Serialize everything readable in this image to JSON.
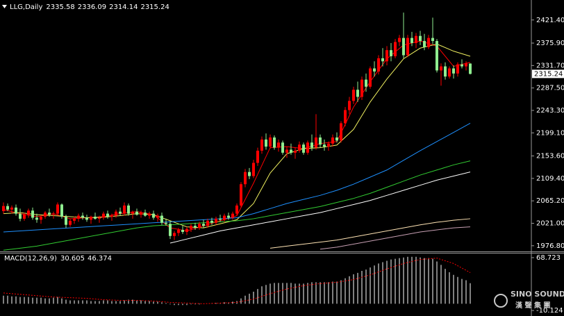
{
  "chart_data": [
    {
      "type": "candlestick",
      "title": "LLG,Daily",
      "open": [
        2045,
        2055,
        2048,
        2052,
        2040,
        2030,
        2038,
        2046,
        2032,
        2028,
        2034,
        2042,
        2038,
        2040,
        2058,
        2034,
        2018,
        2026,
        2030,
        2036,
        2032,
        2028,
        2034,
        2030,
        2032,
        2040,
        2034,
        2036,
        2044,
        2040,
        2056,
        2040,
        2044,
        2038,
        2042,
        2036,
        2040,
        2032,
        2036,
        2022,
        2020,
        1996,
        2002,
        2008,
        2004,
        2010,
        2016,
        2012,
        2020,
        2016,
        2026,
        2022,
        2030,
        2028,
        2036,
        2032,
        2040,
        2056,
        2098,
        2122,
        2114,
        2140,
        2164,
        2186,
        2172,
        2190,
        2170,
        2180,
        2160,
        2166,
        2160,
        2164,
        2176,
        2160,
        2180,
        2170,
        2190,
        2176,
        2172,
        2178,
        2190,
        2184,
        2218,
        2244,
        2262,
        2284,
        2270,
        2304,
        2290,
        2326,
        2320,
        2346,
        2340,
        2362,
        2350,
        2378,
        2386,
        2352,
        2386,
        2376,
        2390,
        2380,
        2368,
        2386,
        2380,
        2322,
        2330,
        2310,
        2326,
        2316,
        2334,
        2330,
        2335.58
      ],
      "high": [
        2062,
        2060,
        2056,
        2058,
        2050,
        2042,
        2050,
        2052,
        2040,
        2036,
        2045,
        2050,
        2044,
        2062,
        2060,
        2038,
        2030,
        2034,
        2040,
        2042,
        2038,
        2036,
        2042,
        2036,
        2044,
        2046,
        2040,
        2048,
        2052,
        2062,
        2060,
        2046,
        2050,
        2046,
        2048,
        2044,
        2046,
        2040,
        2042,
        2030,
        2026,
        2006,
        2012,
        2016,
        2014,
        2020,
        2022,
        2024,
        2028,
        2030,
        2032,
        2034,
        2038,
        2040,
        2042,
        2044,
        2060,
        2102,
        2128,
        2130,
        2146,
        2170,
        2192,
        2198,
        2196,
        2194,
        2186,
        2184,
        2172,
        2178,
        2170,
        2182,
        2180,
        2184,
        2196,
        2236,
        2196,
        2186,
        2182,
        2196,
        2200,
        2222,
        2250,
        2270,
        2290,
        2300,
        2310,
        2316,
        2330,
        2340,
        2352,
        2366,
        2370,
        2376,
        2384,
        2392,
        2436,
        2392,
        2398,
        2396,
        2400,
        2394,
        2392,
        2426,
        2384,
        2336,
        2338,
        2330,
        2332,
        2338,
        2344,
        2340,
        2336.09
      ],
      "low": [
        2040,
        2045,
        2040,
        2036,
        2025,
        2026,
        2032,
        2028,
        2022,
        2020,
        2030,
        2034,
        2030,
        2036,
        2030,
        2012,
        2014,
        2020,
        2024,
        2028,
        2024,
        2020,
        2028,
        2022,
        2028,
        2030,
        2026,
        2032,
        2036,
        2036,
        2036,
        2030,
        2036,
        2032,
        2034,
        2030,
        2028,
        2024,
        2018,
        2016,
        1990,
        1988,
        1996,
        2000,
        1998,
        2004,
        2008,
        2008,
        2012,
        2012,
        2018,
        2018,
        2024,
        2024,
        2028,
        2028,
        2036,
        2052,
        2092,
        2108,
        2110,
        2134,
        2158,
        2166,
        2168,
        2166,
        2162,
        2156,
        2150,
        2156,
        2148,
        2160,
        2156,
        2156,
        2164,
        2166,
        2170,
        2164,
        2164,
        2172,
        2180,
        2180,
        2212,
        2236,
        2256,
        2260,
        2264,
        2280,
        2286,
        2310,
        2314,
        2330,
        2332,
        2340,
        2346,
        2370,
        2346,
        2348,
        2370,
        2366,
        2372,
        2362,
        2364,
        2374,
        2318,
        2292,
        2304,
        2306,
        2306,
        2310,
        2326,
        2322,
        2314.14
      ],
      "close": [
        2055,
        2048,
        2052,
        2040,
        2030,
        2038,
        2046,
        2032,
        2028,
        2034,
        2042,
        2038,
        2040,
        2058,
        2034,
        2018,
        2026,
        2030,
        2036,
        2032,
        2028,
        2034,
        2030,
        2032,
        2040,
        2034,
        2036,
        2044,
        2040,
        2056,
        2040,
        2044,
        2038,
        2042,
        2036,
        2040,
        2032,
        2036,
        2022,
        2020,
        1996,
        2002,
        2008,
        2004,
        2010,
        2016,
        2012,
        2020,
        2016,
        2026,
        2022,
        2030,
        2028,
        2036,
        2032,
        2040,
        2056,
        2098,
        2122,
        2114,
        2140,
        2164,
        2186,
        2172,
        2190,
        2170,
        2180,
        2160,
        2166,
        2160,
        2164,
        2176,
        2160,
        2180,
        2170,
        2190,
        2176,
        2172,
        2178,
        2190,
        2184,
        2218,
        2244,
        2262,
        2284,
        2270,
        2304,
        2290,
        2326,
        2320,
        2346,
        2340,
        2362,
        2350,
        2378,
        2386,
        2352,
        2386,
        2376,
        2390,
        2380,
        2368,
        2386,
        2380,
        2322,
        2330,
        2310,
        2326,
        2316,
        2334,
        2330,
        2335.58,
        2315.24
      ],
      "up_color": "#ff0000",
      "down_color": "#90ee90",
      "lines": [
        {
          "color": "#ff0000",
          "values": [
            2048,
            2040,
            2034,
            2040,
            2030,
            2032,
            2034,
            2040,
            2044,
            2038,
            2012,
            2006,
            2016,
            2026,
            2036,
            2100,
            2170,
            2172,
            2168,
            2178,
            2182,
            2250,
            2300,
            2345,
            2372,
            2380,
            2370,
            2330,
            2338
          ]
        },
        {
          "color": "#f0f060",
          "values": [
            2040,
            2042,
            2038,
            2036,
            2034,
            2032,
            2033,
            2036,
            2040,
            2038,
            2026,
            2014,
            2012,
            2020,
            2028,
            2060,
            2120,
            2158,
            2168,
            2170,
            2175,
            2206,
            2260,
            2305,
            2345,
            2366,
            2374,
            2360,
            2350
          ]
        },
        {
          "color": "#1e90ff",
          "values": [
            2004,
            2006,
            2008,
            2010,
            2012,
            2014,
            2016,
            2018,
            2020,
            2022,
            2024,
            2026,
            2028,
            2030,
            2032,
            2040,
            2050,
            2060,
            2068,
            2076,
            2086,
            2098,
            2112,
            2126,
            2145,
            2164,
            2182,
            2200,
            2218
          ]
        },
        {
          "color": "#32cd32",
          "values": [
            1968,
            1972,
            1976,
            1982,
            1988,
            1994,
            2000,
            2006,
            2012,
            2016,
            2018,
            2020,
            2022,
            2024,
            2026,
            2030,
            2036,
            2042,
            2048,
            2054,
            2062,
            2070,
            2080,
            2092,
            2104,
            2116,
            2126,
            2136,
            2144
          ]
        },
        {
          "color": "#ffffff",
          "values": [
            null,
            null,
            null,
            null,
            null,
            null,
            null,
            null,
            null,
            null,
            1982,
            1990,
            1998,
            2006,
            2012,
            2018,
            2024,
            2030,
            2036,
            2042,
            2050,
            2058,
            2066,
            2076,
            2086,
            2096,
            2106,
            2114,
            2122
          ]
        },
        {
          "color": "#ffe4b5",
          "values": [
            null,
            null,
            null,
            null,
            null,
            null,
            null,
            null,
            null,
            null,
            null,
            null,
            null,
            null,
            null,
            null,
            1972,
            1976,
            1980,
            1984,
            1988,
            1994,
            2000,
            2006,
            2012,
            2018,
            2023,
            2027,
            2030
          ]
        },
        {
          "color": "#c8a0b4",
          "values": [
            null,
            null,
            null,
            null,
            null,
            null,
            null,
            null,
            null,
            null,
            null,
            null,
            null,
            null,
            null,
            null,
            null,
            null,
            null,
            1970,
            1974,
            1980,
            1986,
            1992,
            1998,
            2004,
            2008,
            2012,
            2014
          ]
        }
      ],
      "ylim": [
        1967,
        2458
      ],
      "yticks": [
        {
          "value": 2421.4,
          "label": "2421.40"
        },
        {
          "value": 2375.9,
          "label": "2375.90"
        },
        {
          "value": 2331.7,
          "label": "2331.70"
        },
        {
          "value": 2287.5,
          "label": "2287.50"
        },
        {
          "value": 2243.3,
          "label": "2243.30"
        },
        {
          "value": 2199.1,
          "label": "2199.10"
        },
        {
          "value": 2153.6,
          "label": "2153.60"
        },
        {
          "value": 2109.4,
          "label": "2109.40"
        },
        {
          "value": 2065.2,
          "label": "2065.20"
        },
        {
          "value": 2021,
          "label": "2021.00"
        },
        {
          "value": 1976.8,
          "label": "1976.80"
        }
      ]
    },
    {
      "type": "macd",
      "title": "MACD(12,26,9)",
      "histogram": [
        12,
        12,
        11,
        11,
        10,
        10,
        10,
        9,
        9,
        9,
        8,
        8,
        9,
        10,
        8,
        6,
        5,
        5,
        5,
        5,
        5,
        4,
        4,
        4,
        5,
        5,
        4,
        4,
        4,
        5,
        6,
        6,
        5,
        5,
        4,
        4,
        3,
        3,
        2,
        1,
        -1,
        -2,
        -2,
        -2,
        -2,
        -1,
        -1,
        -1,
        0,
        0,
        1,
        1,
        1,
        2,
        2,
        3,
        4,
        8,
        12,
        15,
        18,
        22,
        26,
        28,
        30,
        31,
        31,
        31,
        31,
        31,
        30,
        30,
        30,
        31,
        32,
        32,
        32,
        32,
        32,
        33,
        33,
        35,
        38,
        41,
        44,
        46,
        49,
        51,
        54,
        57,
        60,
        62,
        64,
        66,
        67,
        68,
        69,
        70,
        70,
        70,
        69,
        68,
        68,
        67,
        63,
        58,
        52,
        47,
        43,
        40,
        37,
        35,
        30.605
      ],
      "signal": [
        16,
        14,
        12,
        10,
        9,
        8,
        6,
        5,
        5,
        4,
        2,
        1,
        0,
        1,
        2,
        7,
        15,
        22,
        27,
        30,
        32,
        36,
        43,
        52,
        60,
        66,
        68,
        60,
        46.374
      ],
      "histogram_color": "#ffffff",
      "signal_color": "#ff0000",
      "ylim": [
        -15.2,
        74.9
      ],
      "yticks": [
        68.723,
        -10.124
      ]
    }
  ],
  "watermark": {
    "name": "SINO SOUND",
    "sub": "漢 聲 集 團"
  }
}
